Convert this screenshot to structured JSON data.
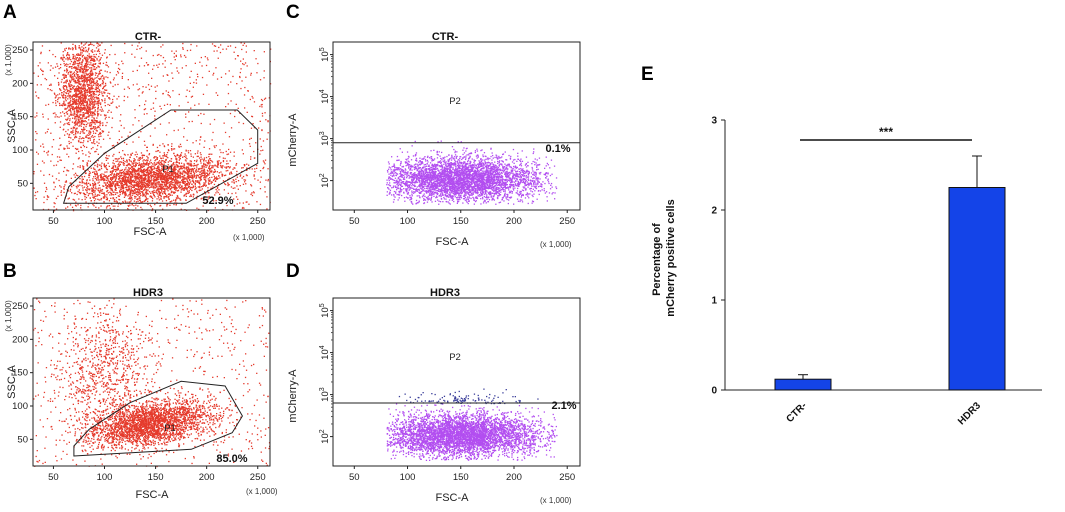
{
  "chart_data": [
    {
      "panel": "A",
      "type": "scatter",
      "title": "CTR-",
      "xlabel": "FSC-A",
      "ylabel": "SSC-A",
      "x_multiplier": "(x 1,000)",
      "y_multiplier": "(x 1,000)",
      "xlim": [
        30,
        262
      ],
      "ylim": [
        10,
        262
      ],
      "xticks": [
        50,
        100,
        150,
        200,
        250
      ],
      "yticks": [
        50,
        100,
        150,
        200,
        250
      ],
      "gate": {
        "name": "P1",
        "percent": "52.9%",
        "polygon": [
          [
            60,
            20
          ],
          [
            180,
            20
          ],
          [
            250,
            80
          ],
          [
            250,
            130
          ],
          [
            230,
            160
          ],
          [
            165,
            160
          ],
          [
            100,
            95
          ],
          [
            65,
            45
          ]
        ]
      },
      "dot_color": "#e53a2c"
    },
    {
      "panel": "B",
      "type": "scatter",
      "title": "HDR3",
      "xlabel": "FSC-A",
      "ylabel": "SSC-A",
      "x_multiplier": "(x 1,000)",
      "y_multiplier": "(x 1,000)",
      "xlim": [
        30,
        262
      ],
      "ylim": [
        10,
        262
      ],
      "xticks": [
        50,
        100,
        150,
        200,
        250
      ],
      "yticks": [
        50,
        100,
        150,
        200,
        250
      ],
      "gate": {
        "name": "P1",
        "percent": "85.0%",
        "polygon": [
          [
            70,
            25
          ],
          [
            185,
            35
          ],
          [
            225,
            60
          ],
          [
            235,
            85
          ],
          [
            218,
            130
          ],
          [
            175,
            137
          ],
          [
            125,
            105
          ],
          [
            85,
            65
          ],
          [
            70,
            40
          ]
        ]
      },
      "dot_color": "#e53a2c"
    },
    {
      "panel": "C",
      "type": "scatter",
      "title": "CTR-",
      "xlabel": "FSC-A",
      "ylabel": "mCherry-A",
      "x_multiplier": "(x 1,000)",
      "xlim": [
        30,
        262
      ],
      "ylim_log": [
        1.3,
        5.3
      ],
      "xticks": [
        50,
        100,
        150,
        200,
        250
      ],
      "yticks": [
        "10^2",
        "10^3",
        "10^4",
        "10^5"
      ],
      "gate": {
        "name": "P2",
        "percent": "0.1%",
        "threshold_log": 2.9
      },
      "dot_color": "#b24ef0"
    },
    {
      "panel": "D",
      "type": "scatter",
      "title": "HDR3",
      "xlabel": "FSC-A",
      "ylabel": "mCherry-A",
      "x_multiplier": "(x 1,000)",
      "xlim": [
        30,
        262
      ],
      "ylim_log": [
        1.3,
        5.3
      ],
      "xticks": [
        50,
        100,
        150,
        200,
        250
      ],
      "yticks": [
        "10^2",
        "10^3",
        "10^4",
        "10^5"
      ],
      "gate": {
        "name": "P2",
        "percent": "2.1%",
        "threshold_log": 2.8
      },
      "dot_color": "#b24ef0",
      "positive_dot_color": "#3a3e9a"
    },
    {
      "panel": "E",
      "type": "bar",
      "categories": [
        "CTR-",
        "HDR3"
      ],
      "values": [
        0.12,
        2.25
      ],
      "errors": [
        0.05,
        0.35
      ],
      "ylabel": "Percentage of mCherry positive cells",
      "ylabel_lines": [
        "Percentage of",
        "mCherry positive cells"
      ],
      "ylim": [
        0,
        3
      ],
      "yticks": [
        0,
        1,
        2,
        3
      ],
      "significance": "***",
      "bar_color": "#1444e8"
    }
  ]
}
